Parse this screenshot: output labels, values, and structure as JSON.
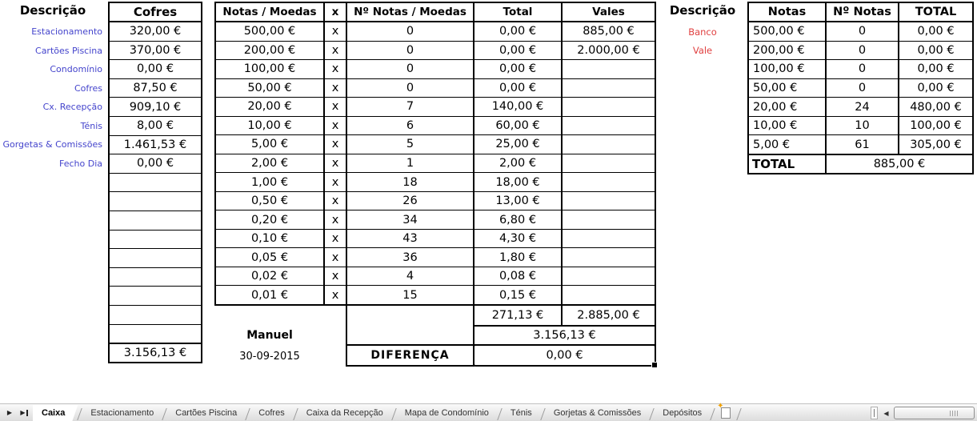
{
  "left_panel": {
    "desc_header": "Descrição",
    "labels": [
      "Estacionamento",
      "Cartões Piscina",
      "Condomínio",
      "Cofres",
      "Cx. Recepção",
      "Ténis",
      "Gorgetas & Comissões",
      "Fecho Dia"
    ],
    "col_header": "Cofres",
    "values": [
      "320,00 €",
      "370,00 €",
      "0,00 €",
      "87,50 €",
      "909,10 €",
      "8,00 €",
      "1.461,53 €",
      "0,00 €"
    ],
    "empty_rows": 9,
    "total": "3.156,13 €"
  },
  "cash_table": {
    "headers": [
      "Notas / Moedas",
      "x",
      "Nº Notas / Moedas",
      "Total",
      "Vales"
    ],
    "rows": [
      {
        "den": "500,00 €",
        "x": "x",
        "count": "0",
        "total": "0,00 €",
        "vale": "885,00 €"
      },
      {
        "den": "200,00 €",
        "x": "x",
        "count": "0",
        "total": "0,00 €",
        "vale": "2.000,00 €"
      },
      {
        "den": "100,00 €",
        "x": "x",
        "count": "0",
        "total": "0,00 €",
        "vale": ""
      },
      {
        "den": "50,00 €",
        "x": "x",
        "count": "0",
        "total": "0,00 €",
        "vale": ""
      },
      {
        "den": "20,00 €",
        "x": "x",
        "count": "7",
        "total": "140,00 €",
        "vale": ""
      },
      {
        "den": "10,00 €",
        "x": "x",
        "count": "6",
        "total": "60,00 €",
        "vale": ""
      },
      {
        "den": "5,00 €",
        "x": "x",
        "count": "5",
        "total": "25,00 €",
        "vale": ""
      },
      {
        "den": "2,00 €",
        "x": "x",
        "count": "1",
        "total": "2,00 €",
        "vale": ""
      },
      {
        "den": "1,00 €",
        "x": "x",
        "count": "18",
        "total": "18,00 €",
        "vale": ""
      },
      {
        "den": "0,50 €",
        "x": "x",
        "count": "26",
        "total": "13,00 €",
        "vale": ""
      },
      {
        "den": "0,20 €",
        "x": "x",
        "count": "34",
        "total": "6,80 €",
        "vale": ""
      },
      {
        "den": "0,10 €",
        "x": "x",
        "count": "43",
        "total": "4,30 €",
        "vale": ""
      },
      {
        "den": "0,05 €",
        "x": "x",
        "count": "36",
        "total": "1,80 €",
        "vale": ""
      },
      {
        "den": "0,02 €",
        "x": "x",
        "count": "4",
        "total": "0,08 €",
        "vale": ""
      },
      {
        "den": "0,01 €",
        "x": "x",
        "count": "15",
        "total": "0,15 €",
        "vale": ""
      }
    ],
    "footer": {
      "totals_subtotal": "271,13 €",
      "vales_subtotal": "2.885,00 €",
      "grand_total": "3.156,13 €",
      "diferenca_label": "DIFERENÇA",
      "diferenca_value": "0,00 €",
      "diferenca_cell_selected": true,
      "signature": "Manuel",
      "date": "30-09-2015"
    }
  },
  "vales_panel": {
    "desc_header": "Descrição",
    "items": [
      "Banco",
      "Vale"
    ]
  },
  "bank_table": {
    "headers": [
      "Notas",
      "Nº Notas",
      "TOTAL"
    ],
    "rows": [
      [
        "500,00 €",
        "0",
        "0,00 €"
      ],
      [
        "200,00 €",
        "0",
        "0,00 €"
      ],
      [
        "100,00 €",
        "0",
        "0,00 €"
      ],
      [
        "50,00 €",
        "0",
        "0,00 €"
      ],
      [
        "20,00 €",
        "24",
        "480,00 €"
      ],
      [
        "10,00 €",
        "10",
        "100,00 €"
      ],
      [
        "5,00 €",
        "61",
        "305,00 €"
      ]
    ],
    "footer_label": "TOTAL",
    "footer_value": "885,00 €"
  },
  "tab_bar": {
    "tabs": [
      {
        "label": "Caixa",
        "active": true
      },
      {
        "label": "Estacionamento",
        "active": false
      },
      {
        "label": "Cartões Piscina",
        "active": false
      },
      {
        "label": "Cofres",
        "active": false
      },
      {
        "label": "Caixa da Recepção",
        "active": false
      },
      {
        "label": "Mapa de Condomínio",
        "active": false
      },
      {
        "label": "Ténis",
        "active": false
      },
      {
        "label": "Gorjetas & Comissões",
        "active": false
      },
      {
        "label": "Depósitos",
        "active": false
      }
    ],
    "insert_sheet_icon": "insert-worksheet-icon",
    "nav": {
      "next": "▶",
      "scroll_left": "◀"
    }
  },
  "colors": {
    "label_blue": "#4444cc",
    "alert_red": "#e04040",
    "border": "#000000"
  }
}
